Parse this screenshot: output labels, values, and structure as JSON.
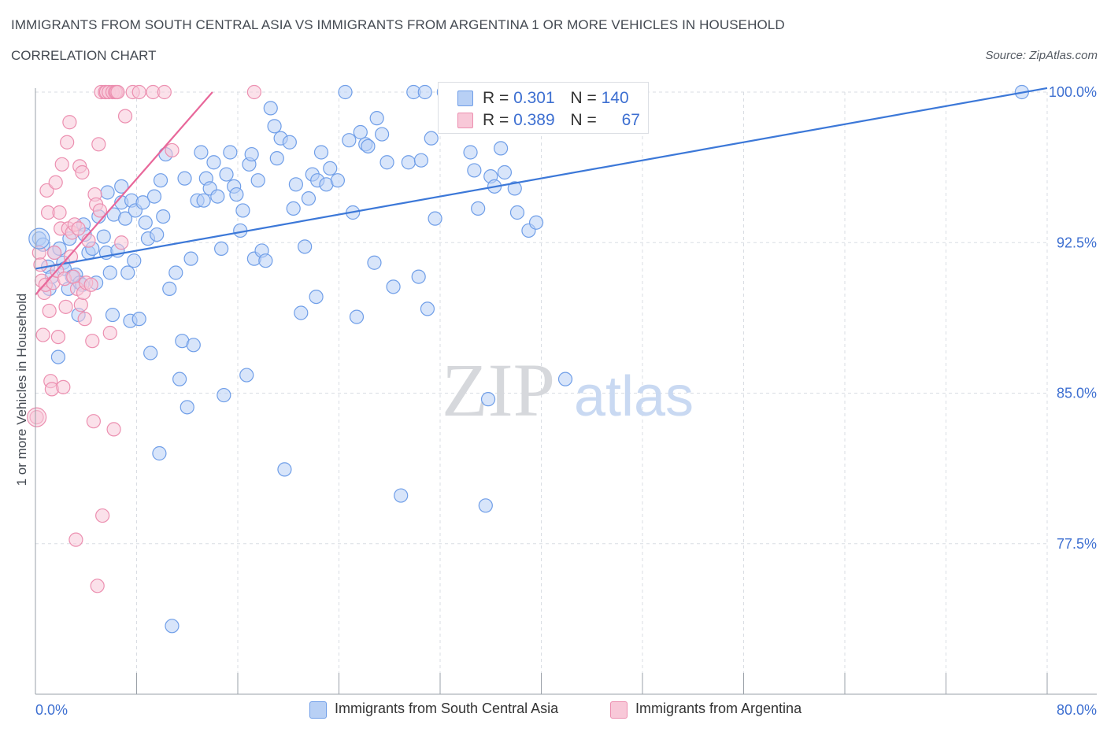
{
  "header": {
    "title": "IMMIGRANTS FROM SOUTH CENTRAL ASIA VS IMMIGRANTS FROM ARGENTINA 1 OR MORE VEHICLES IN HOUSEHOLD",
    "subtitle": "CORRELATION CHART",
    "source": "Source: ZipAtlas.com"
  },
  "watermark": {
    "zip": "ZIP",
    "atlas": "atlas"
  },
  "stats": {
    "blue": {
      "r_label": "R = ",
      "r_value": "0.301",
      "n_label": "N = ",
      "n_value": "140"
    },
    "pink": {
      "r_label": "R = ",
      "r_value": "0.389",
      "n_label": "N = ",
      "n_value": "67"
    }
  },
  "legend": {
    "blue_label": "Immigrants from South Central Asia",
    "pink_label": "Immigrants from Argentina"
  },
  "colors": {
    "blue": "#6f9ee8",
    "blue_fill": "#b8d0f5",
    "blue_line": "#3c78d8",
    "pink": "#ec8fb0",
    "pink_fill": "#f8c8d8",
    "pink_line": "#e8679a",
    "grid": "#d9dde3",
    "axis_text": "#3d6fd1"
  },
  "chart_data": {
    "type": "scatter",
    "title": "IMMIGRANTS FROM SOUTH CENTRAL ASIA VS IMMIGRANTS FROM ARGENTINA 1 OR MORE VEHICLES IN HOUSEHOLD",
    "xlabel": "",
    "ylabel": "1 or more Vehicles in Household",
    "xlim": [
      0,
      80
    ],
    "ylim": [
      70.0,
      100.0
    ],
    "x_tick_labels": [
      "0.0%",
      "80.0%"
    ],
    "y_ticks": [
      77.5,
      85.0,
      92.5,
      100.0
    ],
    "y_tick_labels": [
      "77.5%",
      "85.0%",
      "92.5%",
      "100.0%"
    ],
    "grid": true,
    "legend_position": "bottom-center",
    "series": [
      {
        "name": "Immigrants from South Central Asia",
        "color": "#6f9ee8",
        "trend": {
          "x": [
            0.0,
            80.0
          ],
          "y": [
            91.2,
            100.2
          ]
        },
        "points": [
          [
            0.3,
            92.7
          ],
          [
            0.6,
            92.4
          ],
          [
            1.0,
            91.3
          ],
          [
            1.1,
            90.2
          ],
          [
            1.3,
            90.8
          ],
          [
            1.5,
            92.0
          ],
          [
            1.8,
            86.8
          ],
          [
            1.9,
            92.2
          ],
          [
            2.2,
            91.5
          ],
          [
            2.3,
            91.2
          ],
          [
            2.6,
            90.2
          ],
          [
            2.7,
            92.7
          ],
          [
            2.9,
            90.8
          ],
          [
            3.2,
            90.9
          ],
          [
            3.4,
            88.9
          ],
          [
            3.5,
            90.5
          ],
          [
            3.7,
            90.4
          ],
          [
            3.8,
            93.4
          ],
          [
            3.9,
            92.9
          ],
          [
            4.2,
            92.0
          ],
          [
            4.5,
            92.2
          ],
          [
            4.8,
            90.5
          ],
          [
            5.0,
            93.8
          ],
          [
            5.4,
            92.8
          ],
          [
            5.6,
            92.0
          ],
          [
            5.7,
            95.0
          ],
          [
            5.9,
            91.0
          ],
          [
            6.1,
            88.9
          ],
          [
            6.2,
            93.9
          ],
          [
            6.5,
            92.1
          ],
          [
            6.8,
            95.3
          ],
          [
            6.8,
            94.5
          ],
          [
            7.1,
            93.7
          ],
          [
            7.3,
            91.0
          ],
          [
            7.5,
            88.6
          ],
          [
            7.6,
            94.6
          ],
          [
            7.8,
            91.6
          ],
          [
            7.9,
            94.1
          ],
          [
            8.2,
            88.7
          ],
          [
            8.5,
            94.5
          ],
          [
            8.7,
            93.5
          ],
          [
            8.9,
            92.7
          ],
          [
            9.1,
            87.0
          ],
          [
            9.4,
            94.8
          ],
          [
            9.8,
            82.0
          ],
          [
            9.9,
            95.6
          ],
          [
            10.1,
            93.8
          ],
          [
            10.3,
            96.9
          ],
          [
            10.6,
            90.2
          ],
          [
            10.8,
            73.4
          ],
          [
            11.1,
            91.0
          ],
          [
            11.4,
            85.7
          ],
          [
            11.6,
            87.6
          ],
          [
            11.8,
            95.7
          ],
          [
            12.0,
            84.3
          ],
          [
            12.3,
            91.7
          ],
          [
            12.5,
            87.4
          ],
          [
            12.8,
            94.6
          ],
          [
            13.1,
            97.0
          ],
          [
            13.3,
            94.6
          ],
          [
            13.5,
            95.7
          ],
          [
            13.8,
            95.2
          ],
          [
            14.1,
            96.5
          ],
          [
            14.4,
            94.8
          ],
          [
            14.7,
            92.2
          ],
          [
            14.9,
            84.9
          ],
          [
            15.1,
            95.9
          ],
          [
            15.4,
            97.0
          ],
          [
            15.7,
            95.3
          ],
          [
            15.9,
            94.9
          ],
          [
            16.2,
            93.1
          ],
          [
            16.4,
            94.1
          ],
          [
            16.7,
            85.9
          ],
          [
            16.9,
            96.4
          ],
          [
            17.1,
            96.9
          ],
          [
            17.3,
            91.7
          ],
          [
            17.6,
            95.6
          ],
          [
            17.9,
            92.1
          ],
          [
            18.2,
            91.6
          ],
          [
            18.6,
            99.2
          ],
          [
            18.9,
            98.3
          ],
          [
            19.1,
            96.7
          ],
          [
            19.4,
            97.7
          ],
          [
            19.7,
            81.2
          ],
          [
            20.1,
            97.5
          ],
          [
            20.4,
            94.2
          ],
          [
            20.6,
            95.4
          ],
          [
            21.0,
            89.0
          ],
          [
            21.3,
            92.3
          ],
          [
            21.6,
            94.7
          ],
          [
            21.9,
            95.9
          ],
          [
            22.2,
            89.8
          ],
          [
            22.3,
            95.6
          ],
          [
            22.6,
            97.0
          ],
          [
            23.0,
            95.4
          ],
          [
            23.3,
            96.2
          ],
          [
            23.9,
            95.6
          ],
          [
            24.8,
            97.6
          ],
          [
            25.1,
            94.0
          ],
          [
            25.4,
            88.8
          ],
          [
            25.7,
            98.0
          ],
          [
            26.1,
            97.4
          ],
          [
            26.3,
            97.3
          ],
          [
            26.8,
            91.5
          ],
          [
            27.0,
            98.7
          ],
          [
            27.4,
            97.9
          ],
          [
            27.8,
            96.5
          ],
          [
            28.3,
            90.3
          ],
          [
            28.9,
            79.9
          ],
          [
            29.5,
            96.5
          ],
          [
            29.9,
            100.0
          ],
          [
            30.3,
            90.8
          ],
          [
            30.5,
            96.6
          ],
          [
            30.8,
            100.0
          ],
          [
            31.0,
            89.2
          ],
          [
            31.3,
            97.7
          ],
          [
            31.6,
            93.7
          ],
          [
            32.3,
            100.0
          ],
          [
            33.0,
            99.9
          ],
          [
            33.4,
            100.0
          ],
          [
            34.4,
            97.0
          ],
          [
            34.7,
            96.1
          ],
          [
            35.0,
            94.2
          ],
          [
            35.6,
            79.4
          ],
          [
            35.8,
            84.7
          ],
          [
            36.0,
            95.8
          ],
          [
            36.3,
            95.3
          ],
          [
            36.8,
            97.2
          ],
          [
            37.1,
            96.0
          ],
          [
            37.4,
            100.0
          ],
          [
            37.9,
            95.2
          ],
          [
            38.1,
            94.0
          ],
          [
            39.0,
            93.1
          ],
          [
            39.6,
            93.5
          ],
          [
            41.6,
            100.0
          ],
          [
            41.9,
            85.7
          ],
          [
            78.0,
            100.0
          ],
          [
            38.5,
            100.0
          ],
          [
            24.5,
            100.0
          ],
          [
            9.6,
            92.9
          ]
        ]
      },
      {
        "name": "Immigrants from Argentina",
        "color": "#ec8fb0",
        "trend": {
          "x": [
            0.0,
            14.0
          ],
          "y": [
            89.9,
            100.0
          ]
        },
        "points": [
          [
            0.1,
            83.8
          ],
          [
            0.3,
            92.0
          ],
          [
            0.4,
            91.4
          ],
          [
            0.5,
            90.6
          ],
          [
            0.6,
            87.9
          ],
          [
            0.7,
            90.0
          ],
          [
            0.8,
            90.4
          ],
          [
            0.9,
            95.1
          ],
          [
            1.0,
            94.0
          ],
          [
            1.1,
            89.1
          ],
          [
            1.2,
            85.6
          ],
          [
            1.3,
            85.2
          ],
          [
            1.4,
            90.5
          ],
          [
            1.5,
            92.0
          ],
          [
            1.6,
            95.5
          ],
          [
            1.7,
            91.1
          ],
          [
            1.8,
            87.8
          ],
          [
            1.9,
            94.0
          ],
          [
            2.0,
            93.2
          ],
          [
            2.1,
            96.4
          ],
          [
            2.2,
            85.3
          ],
          [
            2.3,
            90.7
          ],
          [
            2.4,
            89.3
          ],
          [
            2.5,
            97.5
          ],
          [
            2.6,
            93.2
          ],
          [
            2.7,
            98.5
          ],
          [
            2.8,
            91.8
          ],
          [
            2.9,
            93.0
          ],
          [
            3.0,
            90.8
          ],
          [
            3.1,
            93.4
          ],
          [
            3.2,
            77.7
          ],
          [
            3.3,
            90.2
          ],
          [
            3.4,
            93.2
          ],
          [
            3.5,
            96.3
          ],
          [
            3.6,
            89.4
          ],
          [
            3.7,
            96.0
          ],
          [
            3.8,
            90.0
          ],
          [
            3.9,
            88.7
          ],
          [
            4.0,
            90.5
          ],
          [
            4.2,
            92.6
          ],
          [
            4.4,
            90.4
          ],
          [
            4.5,
            87.6
          ],
          [
            4.6,
            83.6
          ],
          [
            4.7,
            94.9
          ],
          [
            4.8,
            94.4
          ],
          [
            4.9,
            75.4
          ],
          [
            5.0,
            97.4
          ],
          [
            5.1,
            94.1
          ],
          [
            5.2,
            100.0
          ],
          [
            5.3,
            78.9
          ],
          [
            5.5,
            100.0
          ],
          [
            5.6,
            100.0
          ],
          [
            5.8,
            100.0
          ],
          [
            5.9,
            88.0
          ],
          [
            6.1,
            100.0
          ],
          [
            6.3,
            100.0
          ],
          [
            6.4,
            100.0
          ],
          [
            6.5,
            100.0
          ],
          [
            6.8,
            92.5
          ],
          [
            7.1,
            98.8
          ],
          [
            7.7,
            100.0
          ],
          [
            8.2,
            100.0
          ],
          [
            9.3,
            100.0
          ],
          [
            10.2,
            100.0
          ],
          [
            10.8,
            97.1
          ],
          [
            17.3,
            100.0
          ],
          [
            6.2,
            83.2
          ]
        ]
      }
    ]
  }
}
